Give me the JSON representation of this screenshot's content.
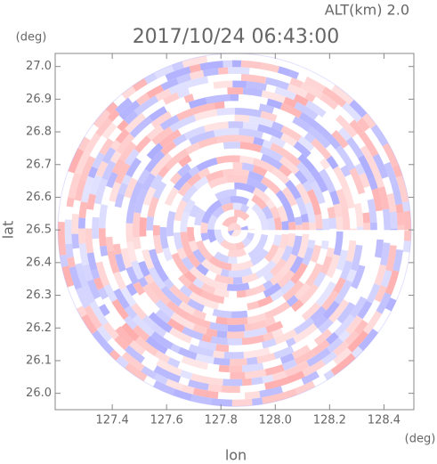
{
  "chart_data": {
    "type": "radar_ppi",
    "title": "2017/10/24 06:43:00",
    "subtitle": "ALT(km) 2.0",
    "x_label": "lon",
    "y_label": "lat",
    "x_unit": "(deg)",
    "y_unit": "(deg)",
    "xlim": [
      127.19,
      128.51
    ],
    "ylim": [
      25.95,
      27.04
    ],
    "xticks": [
      127.4,
      127.6,
      127.8,
      {
        "value": 128,
        "label": "128.0"
      },
      128.2,
      128.4
    ],
    "yticks": [
      {
        "value": 26,
        "label": "26.0"
      },
      26.1,
      26.2,
      26.3,
      26.4,
      26.5,
      26.6,
      26.7,
      26.8,
      26.9,
      {
        "value": 27,
        "label": "27.0"
      }
    ],
    "center": [
      127.85,
      26.5
    ],
    "radius_lon": 0.65,
    "radius_lat": 0.54,
    "colors": [
      "#ff9a9a",
      "#9a9aff"
    ]
  }
}
